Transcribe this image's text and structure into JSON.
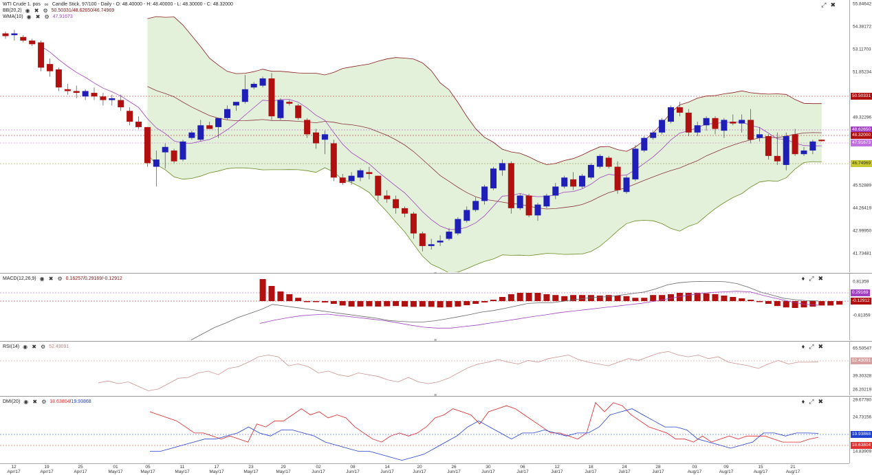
{
  "main": {
    "legend": {
      "title": "WTI Crude 1. pos",
      "chart_info": "Candle Stick, 97/100 - Daily - O: 48.40000 - H: 48.40000 - L: 48.30000 - C: 48.32000",
      "bb_name": "BB(20,2)",
      "bb_values": "50.50331/48.62650/46.74969",
      "wma_name": "WMA(10)",
      "wma_value": "47.91673"
    },
    "axis_ticks": [
      "55.84642",
      "54.38172",
      "53.11703",
      "51.85234",
      "49.32296",
      "45.52889",
      "44.26419",
      "42.99950",
      "41.73481"
    ],
    "tags": {
      "bb_upper": "50.50331",
      "bb_mid": "48.62650",
      "close": "48.32000",
      "wma": "47.91673",
      "bb_lower": "46.74969"
    },
    "colors": {
      "bull": "#1f1fb8",
      "bear": "#b01010",
      "band_fill": "#e3f0da",
      "band_line": "#8b1a1a",
      "wma": "#a040c0"
    }
  },
  "macd": {
    "name": "MACD(12,26,9)",
    "values": "0.16257/0.29169/-0.12912",
    "axis_ticks": [
      "0.81359",
      "-0.81359"
    ],
    "tags": {
      "signal": "0.29169",
      "hist": "-0.12912"
    }
  },
  "rsi": {
    "name": "RSI(14)",
    "value": "52.43091",
    "axis_ticks": [
      "65.50547",
      "39.30328",
      "26.20219"
    ],
    "tag": "52.43091"
  },
  "dmi": {
    "name": "DMI(20)",
    "values_plus": "18.63804",
    "values_sep": "/",
    "values_minus": "19.93868",
    "axis_ticks": [
      "29.67780",
      "24.73156",
      "14.83909"
    ],
    "tags": {
      "minus": "19.93868",
      "plus": "18.63804"
    }
  },
  "xaxis": [
    {
      "d": "12",
      "m": "Apr/17"
    },
    {
      "d": "19",
      "m": "Apr/17"
    },
    {
      "d": "25",
      "m": "Apr/17"
    },
    {
      "d": "01",
      "m": "May/17"
    },
    {
      "d": "05",
      "m": "May/17"
    },
    {
      "d": "11",
      "m": "May/17"
    },
    {
      "d": "17",
      "m": "May/17"
    },
    {
      "d": "23",
      "m": "May/17"
    },
    {
      "d": "29",
      "m": "May/17"
    },
    {
      "d": "02",
      "m": "Jun/17"
    },
    {
      "d": "08",
      "m": "Jun/17"
    },
    {
      "d": "14",
      "m": "Jun/17"
    },
    {
      "d": "20",
      "m": "Jun/17"
    },
    {
      "d": "26",
      "m": "Jun/17"
    },
    {
      "d": "30",
      "m": "Jun/17"
    },
    {
      "d": "06",
      "m": "Jul/17"
    },
    {
      "d": "12",
      "m": "Jul/17"
    },
    {
      "d": "18",
      "m": "Jul/17"
    },
    {
      "d": "24",
      "m": "Jul/17"
    },
    {
      "d": "28",
      "m": "Jul/17"
    },
    {
      "d": "03",
      "m": "Aug/17"
    },
    {
      "d": "09",
      "m": "Aug/17"
    },
    {
      "d": "15",
      "m": "Aug/17"
    },
    {
      "d": "21",
      "m": "Aug/17"
    }
  ],
  "chart_data": {
    "type": "candlestick",
    "price_ohlc": [
      [
        54.3,
        54.4,
        54.0,
        54.15
      ],
      [
        54.2,
        54.5,
        53.9,
        54.3
      ],
      [
        54.1,
        54.2,
        53.8,
        53.9
      ],
      [
        53.9,
        54.0,
        53.6,
        53.7
      ],
      [
        53.8,
        53.9,
        52.2,
        52.4
      ],
      [
        52.6,
        52.9,
        51.9,
        52.2
      ],
      [
        52.3,
        52.4,
        51.1,
        51.3
      ],
      [
        51.2,
        51.5,
        50.9,
        51.1
      ],
      [
        51.1,
        51.4,
        50.7,
        51.0
      ],
      [
        50.8,
        51.2,
        50.6,
        51.1
      ],
      [
        51.0,
        51.3,
        50.6,
        50.8
      ],
      [
        50.8,
        51.0,
        50.3,
        50.6
      ],
      [
        50.6,
        50.9,
        50.3,
        50.7
      ],
      [
        50.6,
        50.9,
        50.0,
        50.2
      ],
      [
        50.0,
        50.2,
        49.2,
        49.4
      ],
      [
        49.4,
        49.7,
        49.0,
        49.1
      ],
      [
        49.1,
        49.1,
        46.9,
        47.1
      ],
      [
        46.9,
        47.8,
        45.8,
        47.3
      ],
      [
        47.7,
        48.2,
        46.8,
        48.0
      ],
      [
        47.8,
        47.9,
        47.1,
        47.2
      ],
      [
        47.3,
        48.4,
        47.2,
        48.3
      ],
      [
        48.5,
        48.9,
        48.4,
        48.8
      ],
      [
        48.4,
        49.5,
        48.3,
        49.2
      ],
      [
        49.2,
        49.4,
        49.0,
        49.0
      ],
      [
        49.1,
        49.6,
        48.5,
        49.6
      ],
      [
        49.6,
        50.3,
        49.5,
        50.1
      ],
      [
        50.3,
        50.4,
        50.0,
        50.5
      ],
      [
        50.5,
        52.0,
        50.4,
        51.2
      ],
      [
        51.3,
        51.6,
        51.2,
        51.5
      ],
      [
        51.4,
        51.9,
        51.3,
        51.8
      ],
      [
        51.8,
        52.1,
        49.5,
        49.7
      ],
      [
        49.6,
        50.7,
        49.5,
        50.6
      ],
      [
        50.5,
        50.6,
        50.3,
        50.4
      ],
      [
        50.3,
        50.4,
        49.5,
        49.6
      ],
      [
        49.5,
        49.6,
        48.5,
        48.7
      ],
      [
        48.8,
        49.0,
        47.9,
        48.2
      ],
      [
        48.4,
        48.9,
        47.6,
        48.7
      ],
      [
        48.2,
        48.4,
        46.1,
        46.3
      ],
      [
        46.3,
        46.5,
        45.9,
        46.0
      ],
      [
        46.1,
        46.6,
        45.9,
        46.4
      ],
      [
        46.3,
        46.8,
        46.1,
        46.7
      ],
      [
        46.6,
        46.9,
        46.2,
        46.5
      ],
      [
        46.4,
        46.4,
        45.0,
        45.3
      ],
      [
        45.3,
        45.6,
        44.9,
        45.1
      ],
      [
        45.1,
        45.3,
        44.3,
        44.6
      ],
      [
        44.6,
        44.7,
        44.1,
        44.3
      ],
      [
        44.3,
        44.4,
        42.9,
        43.2
      ],
      [
        43.2,
        43.3,
        42.2,
        42.5
      ],
      [
        42.5,
        42.9,
        42.3,
        42.6
      ],
      [
        42.7,
        43.1,
        42.5,
        42.8
      ],
      [
        42.9,
        43.5,
        42.8,
        43.3
      ],
      [
        43.2,
        44.1,
        43.1,
        44.0
      ],
      [
        43.9,
        44.7,
        43.8,
        44.5
      ],
      [
        44.5,
        45.2,
        44.4,
        45.0
      ],
      [
        45.0,
        45.9,
        44.8,
        45.8
      ],
      [
        45.7,
        46.9,
        45.6,
        46.8
      ],
      [
        46.7,
        47.3,
        46.4,
        47.1
      ],
      [
        47.1,
        47.2,
        44.3,
        44.6
      ],
      [
        44.6,
        45.4,
        44.5,
        45.3
      ],
      [
        45.3,
        45.4,
        44.1,
        44.2
      ],
      [
        44.2,
        44.9,
        43.9,
        44.8
      ],
      [
        44.7,
        45.4,
        44.6,
        45.3
      ],
      [
        45.3,
        46.0,
        45.1,
        45.8
      ],
      [
        45.8,
        46.4,
        45.7,
        46.3
      ],
      [
        46.2,
        46.6,
        45.6,
        45.8
      ],
      [
        45.8,
        46.5,
        45.7,
        46.4
      ],
      [
        46.3,
        47.1,
        46.2,
        47.0
      ],
      [
        46.9,
        47.6,
        46.8,
        47.5
      ],
      [
        47.4,
        47.5,
        46.8,
        46.9
      ],
      [
        46.9,
        47.2,
        45.4,
        45.6
      ],
      [
        45.5,
        46.4,
        45.4,
        46.3
      ],
      [
        46.2,
        48.1,
        46.1,
        47.9
      ],
      [
        47.8,
        48.6,
        47.7,
        48.5
      ],
      [
        48.5,
        48.9,
        48.4,
        48.8
      ],
      [
        48.8,
        49.6,
        48.7,
        49.5
      ],
      [
        49.4,
        50.3,
        49.3,
        50.2
      ],
      [
        50.2,
        50.5,
        49.7,
        49.9
      ],
      [
        49.9,
        50.1,
        48.6,
        48.8
      ],
      [
        48.8,
        49.4,
        48.6,
        49.2
      ],
      [
        49.2,
        49.7,
        48.9,
        49.6
      ],
      [
        49.6,
        49.7,
        48.7,
        49.0
      ],
      [
        48.9,
        49.6,
        48.5,
        49.5
      ],
      [
        49.4,
        49.8,
        49.2,
        49.3
      ],
      [
        49.3,
        49.8,
        48.8,
        49.5
      ],
      [
        49.5,
        50.1,
        48.2,
        48.4
      ],
      [
        48.5,
        49.1,
        48.3,
        48.7
      ],
      [
        48.6,
        48.7,
        47.3,
        47.5
      ],
      [
        47.5,
        48.8,
        47.0,
        47.2
      ],
      [
        47.0,
        48.8,
        46.7,
        48.6
      ],
      [
        48.7,
        49.0,
        47.5,
        47.6
      ],
      [
        47.6,
        48.0,
        47.5,
        47.8
      ],
      [
        47.8,
        48.4,
        47.6,
        48.3
      ],
      [
        48.4,
        48.4,
        48.3,
        48.32
      ]
    ],
    "macd_hist": [
      0.8,
      0.55,
      0.35,
      0.25,
      0.12,
      0.0,
      -0.03,
      -0.05,
      -0.1,
      -0.16,
      -0.2,
      -0.2,
      -0.19,
      -0.2,
      -0.19,
      -0.18,
      -0.2,
      -0.21,
      -0.2,
      -0.21,
      -0.23,
      -0.22,
      -0.2,
      -0.15,
      -0.1,
      -0.05,
      0.05,
      0.15,
      0.25,
      0.3,
      0.3,
      0.3,
      0.25,
      0.22,
      0.18,
      0.22,
      0.22,
      0.22,
      0.2,
      0.22,
      0.2,
      0.18,
      0.12,
      0.12,
      0.22,
      0.22,
      0.25,
      0.3,
      0.3,
      0.3,
      0.28,
      0.25,
      0.2,
      0.15,
      0.1,
      0.05,
      -0.02,
      -0.1,
      -0.18,
      -0.23,
      -0.25,
      -0.23,
      -0.2,
      -0.16,
      -0.16,
      -0.13
    ],
    "macd_line": [
      -1.1,
      -0.9,
      -0.7,
      -0.55,
      -0.38,
      -0.25,
      -0.12,
      0.05,
      0.0,
      -0.05,
      -0.1,
      -0.15,
      -0.2,
      -0.25,
      -0.3,
      -0.35,
      -0.4,
      -0.47,
      -0.5,
      -0.52,
      -0.52,
      -0.48,
      -0.42,
      -0.35,
      -0.28,
      -0.2,
      -0.15,
      -0.08,
      0.0,
      0.08,
      0.1,
      0.1,
      0.15,
      0.2,
      0.25,
      0.28,
      0.3,
      0.35,
      0.4,
      0.45,
      0.55,
      0.68,
      0.75,
      0.78,
      0.79,
      0.79,
      0.78,
      0.72,
      0.6,
      0.45,
      0.35,
      0.25,
      0.2,
      0.17,
      0.16
    ],
    "macd_signal": [
      -0.3,
      -0.2,
      -0.12,
      -0.05,
      -0.02,
      0.0,
      -0.05,
      -0.1,
      -0.15,
      -0.2,
      -0.27,
      -0.35,
      -0.42,
      -0.45,
      -0.45,
      -0.4,
      -0.35,
      -0.28,
      -0.22,
      -0.15,
      -0.08,
      -0.02,
      0.05,
      0.1,
      0.15,
      0.2,
      0.25,
      0.3,
      0.35,
      0.42,
      0.5,
      0.58,
      0.65,
      0.7,
      0.72,
      0.74,
      0.72,
      0.6,
      0.5,
      0.4,
      0.32,
      0.29
    ],
    "rsi": [
      29,
      31,
      28,
      30,
      25,
      20,
      22,
      28,
      34,
      35,
      40,
      42,
      38,
      45,
      47,
      52,
      58,
      60,
      58,
      48,
      50,
      47,
      40,
      42,
      38,
      36,
      40,
      38,
      36,
      32,
      30,
      35,
      30,
      28,
      30,
      34,
      40,
      46,
      50,
      52,
      55,
      52,
      50,
      54,
      52,
      56,
      58,
      60,
      55,
      52,
      50,
      48,
      52,
      56,
      54,
      58,
      62,
      64,
      60,
      58,
      60,
      56,
      58,
      52,
      50,
      48,
      45,
      50,
      54,
      50,
      52,
      52,
      52.4
    ],
    "dmi_plus": [
      27,
      26,
      25,
      24,
      22,
      20,
      20,
      19,
      18,
      19,
      18,
      17,
      23,
      22,
      24,
      24,
      26,
      28,
      26,
      27,
      25,
      26,
      25,
      22,
      20,
      18,
      17,
      19,
      20,
      19,
      20,
      22,
      25,
      26,
      28,
      27,
      26,
      23,
      27,
      28,
      29,
      28,
      26,
      24,
      22,
      20,
      20,
      19,
      18,
      20,
      30,
      27,
      30,
      29,
      26,
      24,
      22,
      21,
      20,
      18,
      18,
      17,
      19,
      17,
      18,
      19,
      18,
      19,
      19,
      19,
      18,
      17,
      17,
      17,
      18,
      18.6
    ],
    "dmi_minus": [
      14,
      14,
      15,
      16,
      17,
      18,
      18,
      19,
      20,
      22,
      20,
      19,
      21,
      21,
      20,
      19,
      17,
      16,
      15,
      14,
      14,
      13,
      12,
      11,
      12,
      13,
      15,
      17,
      19,
      22,
      24,
      22,
      20,
      18,
      20,
      20,
      21,
      20,
      19,
      20,
      20,
      22,
      26,
      27,
      28,
      26,
      24,
      22,
      22,
      21,
      18,
      17,
      16,
      15,
      16,
      17,
      20,
      20,
      19,
      20,
      20,
      19.9
    ],
    "price_ylim": [
      41.2,
      56.0
    ]
  }
}
